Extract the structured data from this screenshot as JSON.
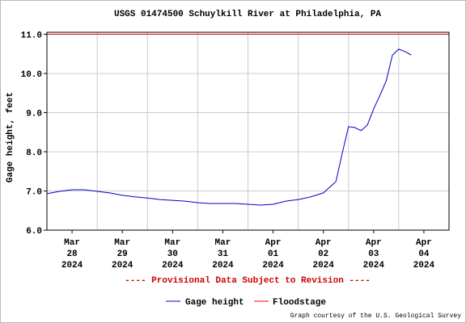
{
  "chart_data": {
    "type": "line",
    "title": "USGS 01474500 Schuylkill River at Philadelphia, PA",
    "ylabel": "Gage height, feet",
    "annotation": "---- Provisional Data Subject to Revision ----",
    "credit": "Graph courtesy of the U.S. Geological Survey",
    "x": [
      "2024-03-28T00:00",
      "2024-03-28T06:00",
      "2024-03-28T12:00",
      "2024-03-28T18:00",
      "2024-03-29T00:00",
      "2024-03-29T06:00",
      "2024-03-29T12:00",
      "2024-03-29T18:00",
      "2024-03-30T00:00",
      "2024-03-30T06:00",
      "2024-03-30T12:00",
      "2024-03-30T18:00",
      "2024-03-31T00:00",
      "2024-03-31T06:00",
      "2024-03-31T12:00",
      "2024-03-31T18:00",
      "2024-04-01T00:00",
      "2024-04-01T06:00",
      "2024-04-01T12:00",
      "2024-04-01T18:00",
      "2024-04-02T00:00",
      "2024-04-02T06:00",
      "2024-04-02T12:00",
      "2024-04-02T18:00",
      "2024-04-02T21:00",
      "2024-04-03T00:00",
      "2024-04-03T03:00",
      "2024-04-03T06:00",
      "2024-04-03T09:00",
      "2024-04-03T12:00",
      "2024-04-03T15:00",
      "2024-04-03T18:00",
      "2024-04-03T21:00",
      "2024-04-04T00:00",
      "2024-04-04T03:00",
      "2024-04-04T06:00"
    ],
    "series": [
      {
        "name": "Gage height",
        "color": "#0000cc",
        "values": [
          6.93,
          6.99,
          7.03,
          7.03,
          6.99,
          6.95,
          6.89,
          6.85,
          6.82,
          6.78,
          6.76,
          6.74,
          6.7,
          6.68,
          6.68,
          6.68,
          6.66,
          6.64,
          6.66,
          6.74,
          6.78,
          6.85,
          6.95,
          7.24,
          7.96,
          8.64,
          8.62,
          8.54,
          8.68,
          9.09,
          9.44,
          9.81,
          10.47,
          10.62,
          10.56,
          10.47
        ]
      }
    ],
    "floodstage": {
      "name": "Floodstage",
      "value": 11.0,
      "color": "#ff0000"
    },
    "xlim": [
      "2024-03-28T00:00",
      "2024-04-05T00:00"
    ],
    "xticks": [
      {
        "value": "2024-03-28T12:00",
        "label": [
          "Mar",
          "28",
          "2024"
        ]
      },
      {
        "value": "2024-03-29T12:00",
        "label": [
          "Mar",
          "29",
          "2024"
        ]
      },
      {
        "value": "2024-03-30T12:00",
        "label": [
          "Mar",
          "30",
          "2024"
        ]
      },
      {
        "value": "2024-03-31T12:00",
        "label": [
          "Mar",
          "31",
          "2024"
        ]
      },
      {
        "value": "2024-04-01T12:00",
        "label": [
          "Apr",
          "01",
          "2024"
        ]
      },
      {
        "value": "2024-04-02T12:00",
        "label": [
          "Apr",
          "02",
          "2024"
        ]
      },
      {
        "value": "2024-04-03T12:00",
        "label": [
          "Apr",
          "03",
          "2024"
        ]
      },
      {
        "value": "2024-04-04T12:00",
        "label": [
          "Apr",
          "04",
          "2024"
        ]
      }
    ],
    "xgrid": [
      "2024-03-29T00:00",
      "2024-03-30T00:00",
      "2024-03-31T00:00",
      "2024-04-01T00:00",
      "2024-04-02T00:00",
      "2024-04-03T00:00",
      "2024-04-04T00:00"
    ],
    "ylim": [
      6,
      11.05
    ],
    "yticks": [
      {
        "value": 6,
        "label": "6.0"
      },
      {
        "value": 7,
        "label": "7.0"
      },
      {
        "value": 8,
        "label": "8.0"
      },
      {
        "value": 9,
        "label": "9.0"
      },
      {
        "value": 10,
        "label": "10.0"
      },
      {
        "value": 11,
        "label": "11.0"
      }
    ],
    "grid": true
  }
}
